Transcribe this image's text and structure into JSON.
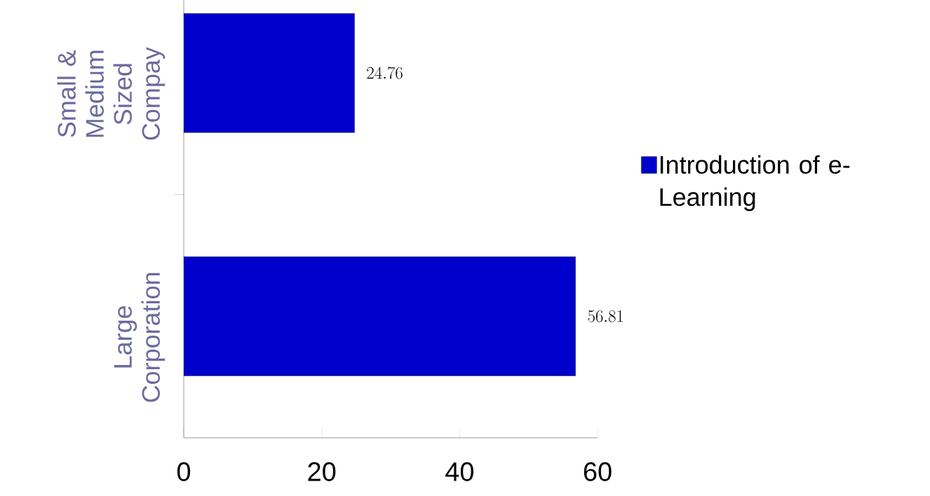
{
  "chart_data": {
    "type": "bar",
    "orientation": "horizontal",
    "categories": [
      "Small & Medium Sized Compay",
      "Large Corporation"
    ],
    "series": [
      {
        "name": "Introduction of e-Learning",
        "color": "#0000cc",
        "values": [
          24.76,
          56.81
        ]
      }
    ],
    "xlim": [
      0,
      60
    ],
    "xticks": [
      0,
      20,
      40,
      60
    ],
    "data_labels": true,
    "legend": "right"
  }
}
